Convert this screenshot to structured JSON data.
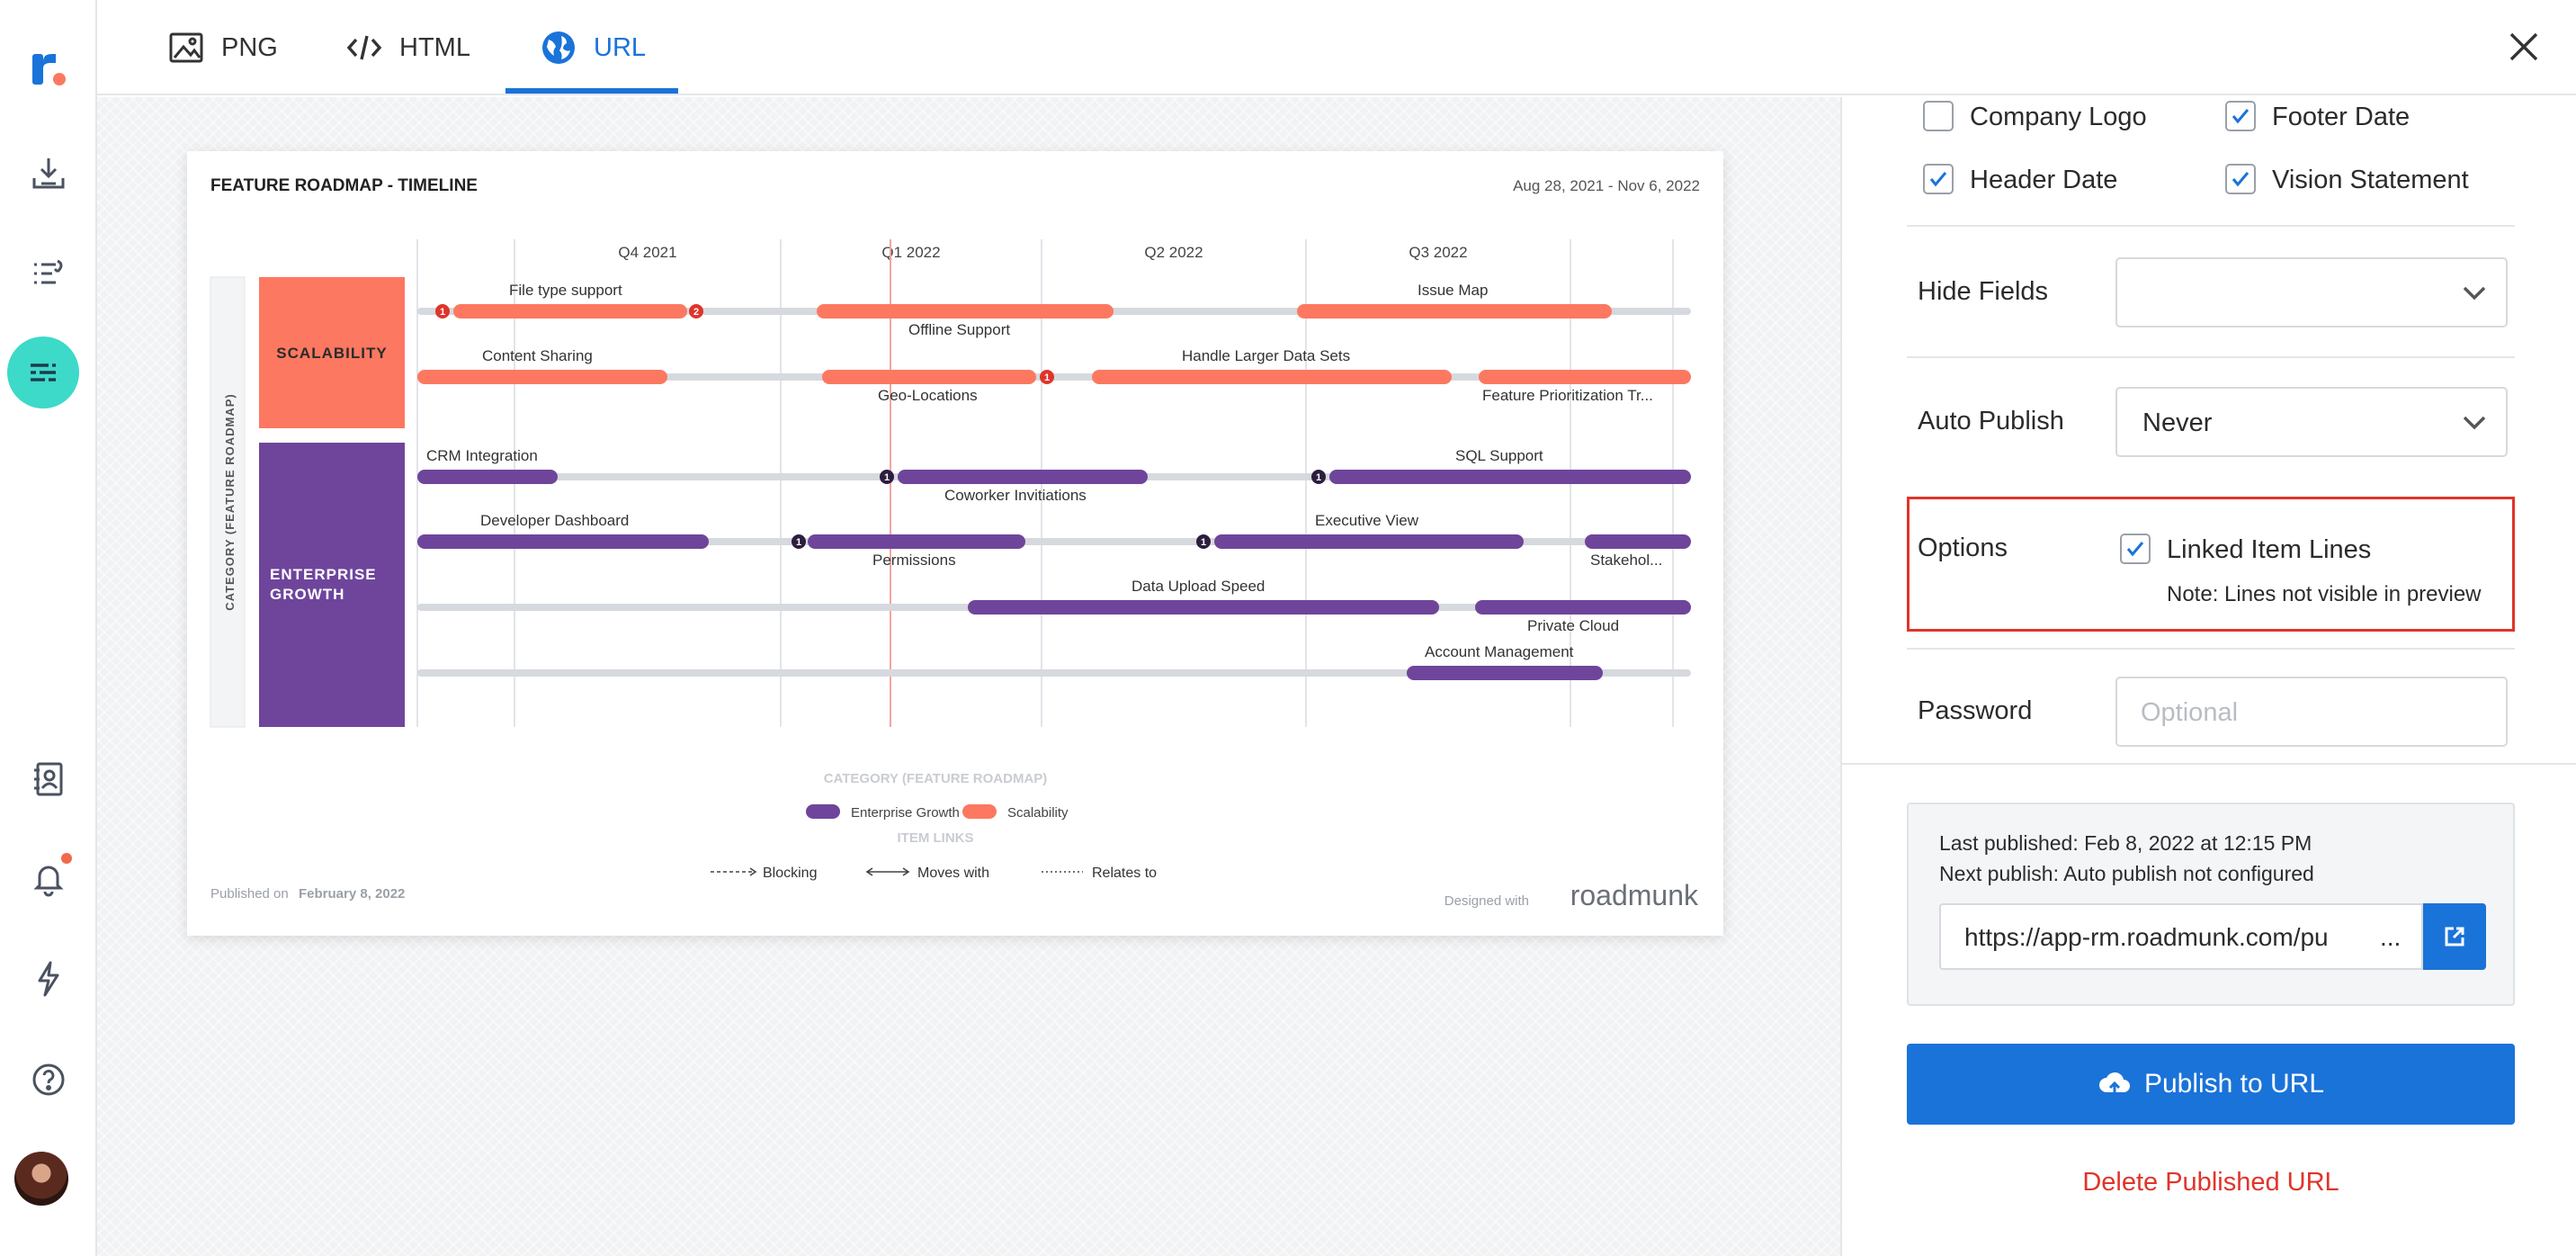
{
  "tabs": [
    {
      "label": "PNG",
      "icon": "image-icon"
    },
    {
      "label": "HTML",
      "icon": "code-icon"
    },
    {
      "label": "URL",
      "icon": "globe-icon",
      "active": true
    }
  ],
  "leftnav": {
    "items": [
      "logo",
      "import-icon",
      "list-icon",
      "roadmap-icon",
      "contacts-icon",
      "bell-icon",
      "lightning-icon",
      "help-icon",
      "avatar"
    ],
    "accent": "#3dd9c9"
  },
  "roadmap": {
    "title": "FEATURE ROADMAP - TIMELINE",
    "date_range": "Aug 28, 2021 - Nov 6, 2022",
    "quarters": [
      "Q4 2021",
      "Q1 2022",
      "Q2 2022",
      "Q3 2022"
    ],
    "side_label": "CATEGORY (FEATURE ROADMAP)",
    "groups": [
      {
        "name": "SCALABILITY",
        "color": "#fd7860"
      },
      {
        "name": "ENTERPRISE GROWTH",
        "color": "#6e459b"
      }
    ],
    "items": [
      {
        "label": "File type support",
        "group": 0
      },
      {
        "label": "Offline Support",
        "group": 0
      },
      {
        "label": "Issue Map",
        "group": 0
      },
      {
        "label": "Content Sharing",
        "group": 0
      },
      {
        "label": "Geo-Locations",
        "group": 0
      },
      {
        "label": "Handle Larger Data Sets",
        "group": 0
      },
      {
        "label": "Feature Prioritization Tr...",
        "group": 0
      },
      {
        "label": "CRM Integration",
        "group": 1
      },
      {
        "label": "Coworker Invitiations",
        "group": 1
      },
      {
        "label": "SQL Support",
        "group": 1
      },
      {
        "label": "Developer Dashboard",
        "group": 1
      },
      {
        "label": "Permissions",
        "group": 1
      },
      {
        "label": "Executive View",
        "group": 1
      },
      {
        "label": "Stakehol...",
        "group": 1
      },
      {
        "label": "Data Upload Speed",
        "group": 1
      },
      {
        "label": "Private Cloud",
        "group": 1
      },
      {
        "label": "Account Management",
        "group": 1
      }
    ],
    "badges": [
      "1",
      "2",
      "1",
      "1",
      "1",
      "1",
      "1"
    ],
    "legend_title": "CATEGORY (FEATURE ROADMAP)",
    "legend": [
      {
        "label": "Enterprise Growth",
        "color": "#6e459b"
      },
      {
        "label": "Scalability",
        "color": "#fd7860"
      }
    ],
    "links_title": "ITEM LINKS",
    "links": [
      "Blocking",
      "Moves with",
      "Relates to"
    ],
    "published_on_label": "Published on",
    "published_on_date": "February 8, 2022",
    "designed_with": "Designed with",
    "brand": "roadmunk"
  },
  "panel": {
    "checkboxes": [
      {
        "label": "Company Logo",
        "checked": false
      },
      {
        "label": "Footer Date",
        "checked": true
      },
      {
        "label": "Header Date",
        "checked": true
      },
      {
        "label": "Vision Statement",
        "checked": true
      }
    ],
    "hide_fields_label": "Hide Fields",
    "hide_fields_value": "",
    "auto_publish_label": "Auto Publish",
    "auto_publish_value": "Never",
    "options_label": "Options",
    "linked_item_lines_label": "Linked Item Lines",
    "linked_item_lines_checked": true,
    "options_note": "Note: Lines not visible in preview",
    "password_label": "Password",
    "password_placeholder": "Optional",
    "last_published": "Last published: Feb 8, 2022 at 12:15 PM",
    "next_publish": "Next publish: Auto publish not configured",
    "url": "https://app-rm.roadmunk.com/pu",
    "url_ellipsis": "...",
    "publish_button": "Publish to URL",
    "delete_link": "Delete Published URL",
    "primary_color": "#1a73d9",
    "danger_color": "#e0342b"
  }
}
